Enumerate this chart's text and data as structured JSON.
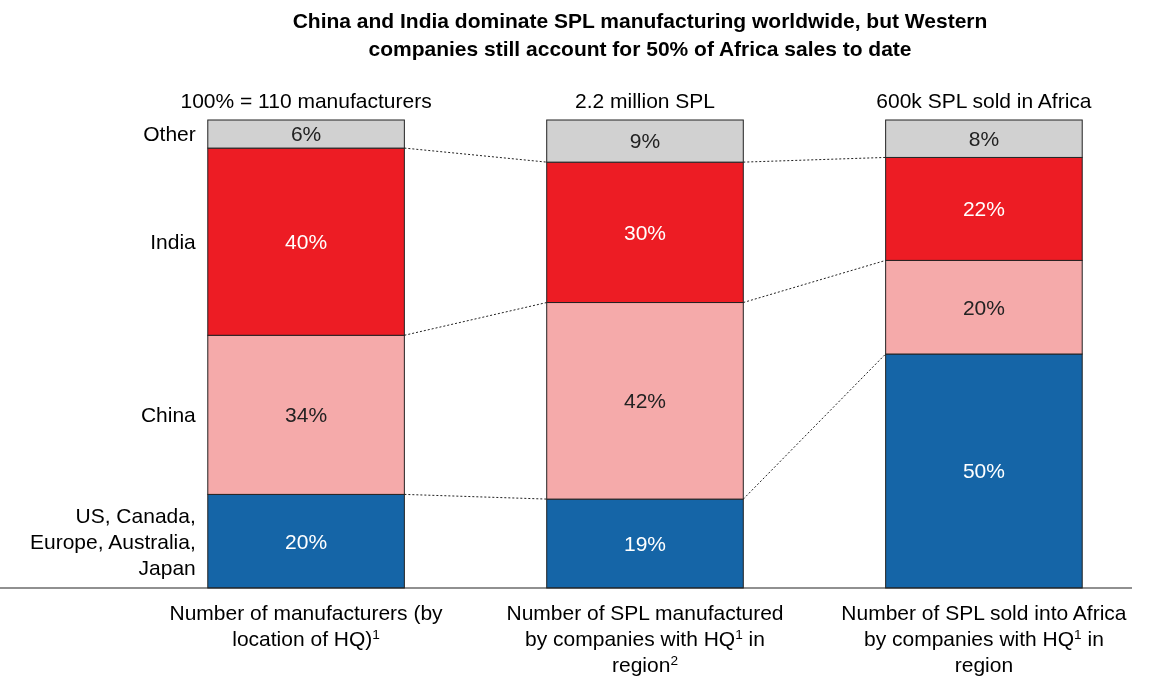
{
  "chart_data": {
    "type": "bar",
    "title": "China and India dominate SPL manufacturing worldwide, but Western companies still account for 50% of Africa sales to date",
    "categories": [
      "Number of manufacturers (by location of HQ)$^{1}$",
      "Number of SPL manufactured by companies with HQ$^{1}$ in region$^{2}$",
      "Number of SPL sold into Africa by companies with HQ$^{1}$ in region"
    ],
    "stacked": true,
    "legend": "left",
    "annotations": [
      "100% = 110 manufacturers",
      "2.2 million SPL",
      "600k SPL sold in Africa"
    ],
    "series": [
      {
        "name": "US, Canada, Europe, Australia, Japan",
        "color": "#1565a7",
        "values": [
          20,
          19,
          50
        ],
        "value_labels": [
          "20%",
          "19%",
          "50%"
        ]
      },
      {
        "name": "China",
        "color": "#f5aaaa",
        "values": [
          34,
          42,
          20
        ],
        "value_labels": [
          "34%",
          "42%",
          "20%"
        ]
      },
      {
        "name": "India",
        "color": "#ed1c24",
        "values": [
          40,
          30,
          22
        ],
        "value_labels": [
          "40%",
          "30%",
          "22%"
        ]
      },
      {
        "name": "Other",
        "color": "#d1d1d1",
        "values": [
          6,
          9,
          8
        ],
        "value_labels": [
          "6%",
          "9%",
          "8%"
        ]
      }
    ]
  }
}
